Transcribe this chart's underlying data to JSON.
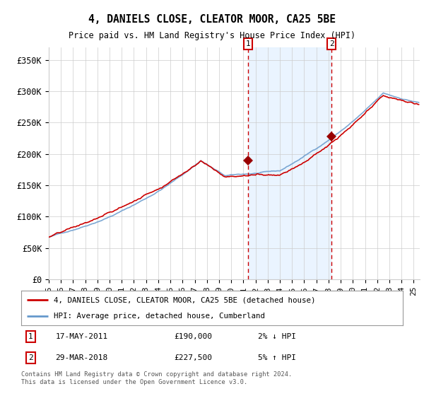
{
  "title": "4, DANIELS CLOSE, CLEATOR MOOR, CA25 5BE",
  "subtitle": "Price paid vs. HM Land Registry's House Price Index (HPI)",
  "ylabel_ticks": [
    "£0",
    "£50K",
    "£100K",
    "£150K",
    "£200K",
    "£250K",
    "£300K",
    "£350K"
  ],
  "ytick_values": [
    0,
    50000,
    100000,
    150000,
    200000,
    250000,
    300000,
    350000
  ],
  "ylim": [
    0,
    370000
  ],
  "xlim_start": 1995.0,
  "xlim_end": 2025.5,
  "purchase1_x": 2011.37,
  "purchase1_y": 190000,
  "purchase1_label": "17-MAY-2011",
  "purchase1_price": "£190,000",
  "purchase1_hpi": "2% ↓ HPI",
  "purchase2_x": 2018.24,
  "purchase2_y": 227500,
  "purchase2_label": "29-MAR-2018",
  "purchase2_price": "£227,500",
  "purchase2_hpi": "5% ↑ HPI",
  "line1_label": "4, DANIELS CLOSE, CLEATOR MOOR, CA25 5BE (detached house)",
  "line2_label": "HPI: Average price, detached house, Cumberland",
  "line1_color": "#cc0000",
  "line2_color": "#6699cc",
  "shade_color": "#ddeeff",
  "vline_color": "#cc0000",
  "marker_color": "#990000",
  "footer": "Contains HM Land Registry data © Crown copyright and database right 2024.\nThis data is licensed under the Open Government Licence v3.0.",
  "bg_color": "#ffffff",
  "grid_color": "#cccccc"
}
